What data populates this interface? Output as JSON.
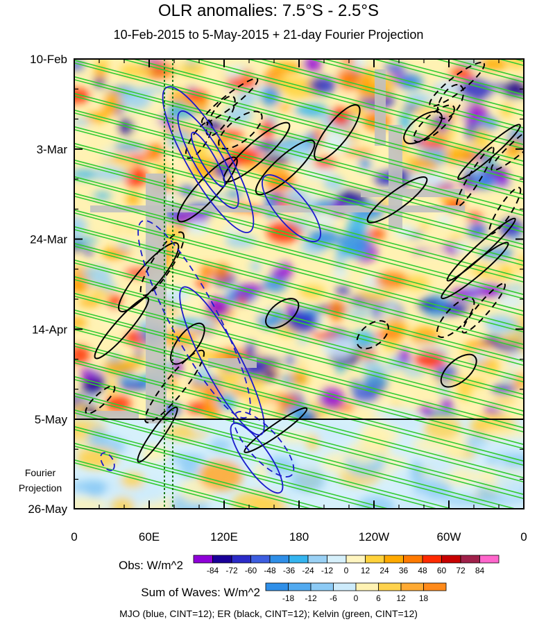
{
  "chart_data": {
    "type": "heatmap",
    "title": "OLR anomalies: 7.5°S - 2.5°S",
    "subtitle": "10-Feb-2015 to 5-May-2015 + 21-day Fourier Projection",
    "x_ticks": [
      "0",
      "60E",
      "120E",
      "180",
      "120W",
      "60W",
      "0"
    ],
    "y_ticks": [
      "10-Feb",
      "3-Mar",
      "24-Mar",
      "14-Apr",
      "5-May"
    ],
    "projection_label": [
      "Fourier",
      "Projection"
    ],
    "projection_end": "26-May",
    "colorbar_obs": {
      "label": "Obs: W/m^2",
      "ticks": [
        "-84",
        "-72",
        "-60",
        "-48",
        "-36",
        "-24",
        "-12",
        "0",
        "12",
        "24",
        "36",
        "48",
        "60",
        "72",
        "84"
      ],
      "colors": [
        "#8f00d9",
        "#1a0099",
        "#2b2bc8",
        "#3d5ee0",
        "#2f8fe8",
        "#35b5f0",
        "#9ad1f5",
        "#d6f0fb",
        "#fff5c0",
        "#ffd23c",
        "#ffaa00",
        "#ff7a00",
        "#ff2a00",
        "#c80000",
        "#a0204a",
        "#ff66cc"
      ]
    },
    "colorbar_waves": {
      "label": "Sum of Waves: W/m^2",
      "ticks": [
        "-18",
        "-12",
        "-6",
        "0",
        "6",
        "12",
        "18"
      ],
      "colors": [
        "#2f8fe8",
        "#52aaf0",
        "#8ccaf5",
        "#cdebfb",
        "#fff2b3",
        "#ffd24d",
        "#ffaa33",
        "#ff8a1a"
      ]
    },
    "legend_note": "MJO (blue, CINT=12); ER (black, CINT=12); Kelvin (green, CINT=12)",
    "series_colors": {
      "MJO": "#1a1acc",
      "ER": "#000000",
      "Kelvin": "#33cc33"
    }
  }
}
